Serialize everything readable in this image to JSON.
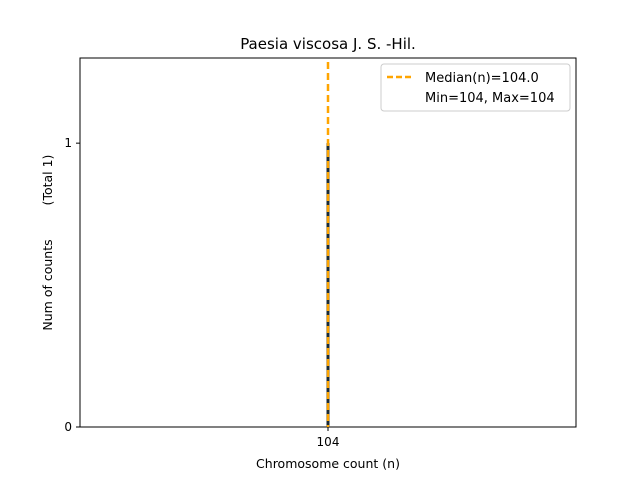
{
  "chart_data": {
    "type": "bar",
    "title": "Paesia viscosa J. S. -Hil.",
    "xlabel": "Chromosome count (n)",
    "ylabel": "Num of counts",
    "ylabel_total": "(Total 1)",
    "categories": [
      "104"
    ],
    "values": [
      1
    ],
    "xlim": [
      103.5,
      104.5
    ],
    "ylim": [
      0,
      1.3
    ],
    "yticks": [
      "0",
      "1"
    ],
    "xticks": [
      "104"
    ],
    "median": 104.0,
    "legend": {
      "placement": "top-right",
      "entries": [
        "Median(n)=104.0",
        "Min=104, Max=104"
      ]
    },
    "colors": {
      "bar_edge": "#1a2a35",
      "median_line": "#ffa500"
    },
    "grid": false
  }
}
